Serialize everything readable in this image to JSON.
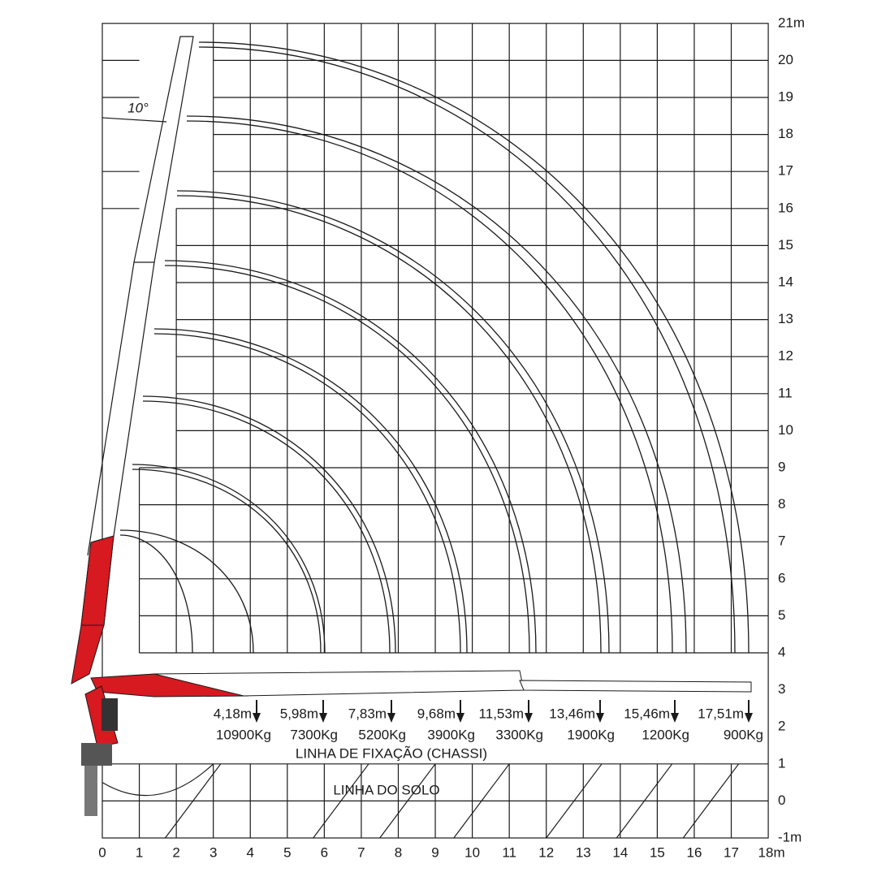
{
  "x_axis": {
    "labels": [
      "0",
      "1",
      "2",
      "3",
      "4",
      "5",
      "6",
      "7",
      "8",
      "9",
      "10",
      "11",
      "12",
      "13",
      "14",
      "15",
      "16",
      "17",
      "18m"
    ]
  },
  "y_axis": {
    "labels": [
      "-1m",
      "0",
      "1",
      "2",
      "3",
      "4",
      "5",
      "6",
      "7",
      "8",
      "9",
      "10",
      "11",
      "12",
      "13",
      "14",
      "15",
      "16",
      "17",
      "18",
      "19",
      "20",
      "21m"
    ]
  },
  "angle_label": "10°",
  "fixation_line": "LINHA DE FIXAÇÃO (CHASSI)",
  "ground_line": "LINHA DO SOLO",
  "loads": [
    {
      "reach": "4,18m",
      "load": "10900Kg"
    },
    {
      "reach": "5,98m",
      "load": "7300Kg"
    },
    {
      "reach": "7,83m",
      "load": "5200Kg"
    },
    {
      "reach": "9,68m",
      "load": "3900Kg"
    },
    {
      "reach": "11,53m",
      "load": "3300Kg"
    },
    {
      "reach": "13,46m",
      "load": "1900Kg"
    },
    {
      "reach": "15,46m",
      "load": "1200Kg"
    },
    {
      "reach": "17,51m",
      "load": "900Kg"
    }
  ]
}
